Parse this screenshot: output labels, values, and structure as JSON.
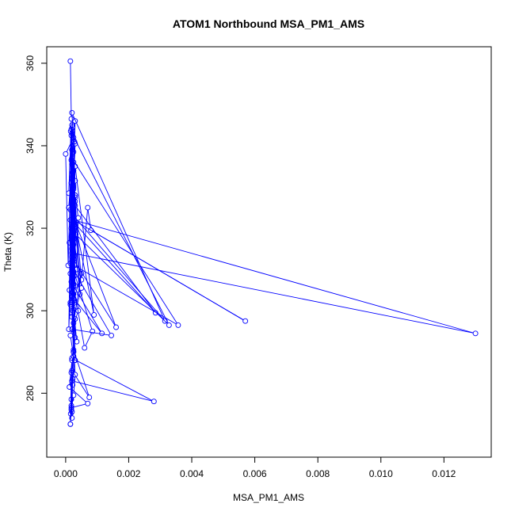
{
  "chart_data": {
    "type": "line",
    "title": "ATOM1 Northbound MSA_PM1_AMS",
    "xlabel": "MSA_PM1_AMS",
    "ylabel": "Theta (K)",
    "xlim": [
      -0.0006,
      0.0135
    ],
    "ylim": [
      264.5,
      364.0
    ],
    "x_ticks": [
      0.0,
      0.002,
      0.004,
      0.006,
      0.008,
      0.01,
      0.012
    ],
    "x_tick_labels": [
      "0.000",
      "0.002",
      "0.004",
      "0.006",
      "0.008",
      "0.010",
      "0.012"
    ],
    "y_ticks": [
      280,
      300,
      320,
      340,
      360
    ],
    "y_tick_labels": [
      "280",
      "300",
      "320",
      "340",
      "360"
    ],
    "grid": false,
    "legend": "none",
    "line_color": "#0000ff",
    "series": [
      {
        "marker": "open-circle",
        "x": [
          0.00015,
          0.00018,
          0.0001,
          0.0002,
          8e-05,
          0.0,
          0.00025,
          0.0001,
          0.0003,
          0.00015,
          0.0002,
          0.00018,
          0.00022,
          0.00028,
          0.00012,
          0.00025,
          0.00018,
          0.0002,
          0.00015,
          0.0003,
          0.00022,
          0.00018,
          0.00025,
          0.0005,
          0.0007,
          0.0008,
          0.0057,
          0.00025,
          0.013,
          0.0002,
          0.0003,
          0.00022,
          0.0003,
          0.0009,
          0.00025,
          0.00315,
          0.0002,
          0.0003,
          0.00012,
          0.00018,
          0.00025,
          0.0002,
          0.0001,
          0.00018,
          0.00025,
          0.00028,
          0.00035,
          0.0004,
          0.0003,
          0.00025,
          0.00022,
          0.00018,
          0.0002,
          0.00025,
          0.0003,
          0.00285,
          0.00025,
          0.0002,
          0.00025,
          0.00022,
          0.00032,
          0.00328,
          0.0002,
          0.00028,
          0.00025,
          0.00025,
          0.0003,
          0.00015,
          0.00357,
          0.0002,
          0.0003,
          0.00025,
          0.00022,
          0.00025,
          0.00028,
          0.0003,
          0.00016,
          0.0002,
          0.00025,
          0.00015,
          0.0002,
          0.00025,
          0.00025,
          0.00028,
          0.0003,
          0.00045,
          0.00025,
          0.00022,
          0.0002,
          0.0002,
          0.0002,
          0.00025,
          0.00035,
          0.0005,
          0.0003,
          0.0002,
          0.00015,
          0.0016,
          0.0002,
          0.00025,
          0.0003,
          0.0002,
          0.00025,
          0.00015,
          0.0004,
          0.00015,
          0.0002,
          0.00085,
          0.0006,
          0.00025,
          0.00115,
          0.0002,
          0.0003,
          0.00025,
          0.0002,
          0.00145,
          0.0002,
          0.00025,
          0.00022,
          0.0003,
          0.00018,
          0.00035,
          0.0002,
          0.0005,
          0.00025,
          0.0003,
          0.0002,
          0.00075,
          0.00025,
          0.0002,
          0.0028,
          0.0002,
          0.0002,
          0.00018,
          0.00015,
          0.00018,
          0.0002,
          0.00012,
          0.0007,
          0.00018,
          0.00015,
          0.00025,
          0.00022,
          0.00028,
          0.0003,
          0.00025,
          0.00018,
          0.00022,
          0.0002,
          0.00018,
          0.00016
        ],
        "y": [
          360.5,
          346.5,
          328.5,
          345.0,
          311.0,
          338.0,
          342.0,
          325.0,
          346.0,
          302.0,
          339.0,
          331.0,
          344.5,
          341.0,
          316.5,
          336.0,
          320.0,
          333.0,
          309.0,
          340.5,
          326.0,
          318.0,
          329.5,
          307.5,
          325.0,
          319.5,
          297.5,
          322.0,
          294.5,
          314.0,
          327.5,
          310.5,
          335.0,
          299.0,
          323.0,
          297.5,
          348.0,
          331.5,
          305.0,
          342.5,
          319.0,
          313.0,
          295.5,
          336.5,
          330.5,
          317.5,
          310.0,
          322.5,
          328.0,
          334.0,
          312.0,
          344.0,
          308.0,
          338.5,
          325.5,
          299.5,
          321.5,
          315.0,
          327.0,
          300.0,
          318.5,
          296.5,
          343.0,
          313.5,
          330.0,
          324.0,
          306.0,
          311.5,
          296.5,
          337.0,
          320.5,
          309.5,
          333.5,
          316.0,
          302.5,
          326.5,
          343.5,
          304.5,
          318.0,
          322.0,
          335.5,
          312.5,
          303.0,
          308.5,
          328.0,
          304.0,
          319.5,
          314.5,
          332.0,
          298.5,
          317.0,
          306.5,
          301.0,
          305.5,
          320.0,
          310.0,
          324.5,
          296.0,
          313.0,
          304.0,
          321.0,
          299.5,
          289.0,
          294.0,
          300.0,
          301.5,
          311.0,
          295.0,
          291.0,
          306.0,
          294.5,
          303.5,
          288.0,
          309.0,
          295.5,
          294.0,
          310.5,
          290.0,
          302.0,
          298.0,
          307.0,
          292.5,
          301.0,
          309.0,
          297.0,
          293.5,
          285.5,
          279.0,
          290.5,
          288.5,
          278.0,
          283.0,
          275.5,
          285.0,
          272.5,
          278.5,
          288.0,
          281.5,
          277.5,
          276.5,
          272.5,
          290.0,
          282.0,
          288.0,
          284.5,
          279.5,
          276.0,
          283.5,
          274.0,
          277.0,
          275.0
        ]
      }
    ]
  }
}
